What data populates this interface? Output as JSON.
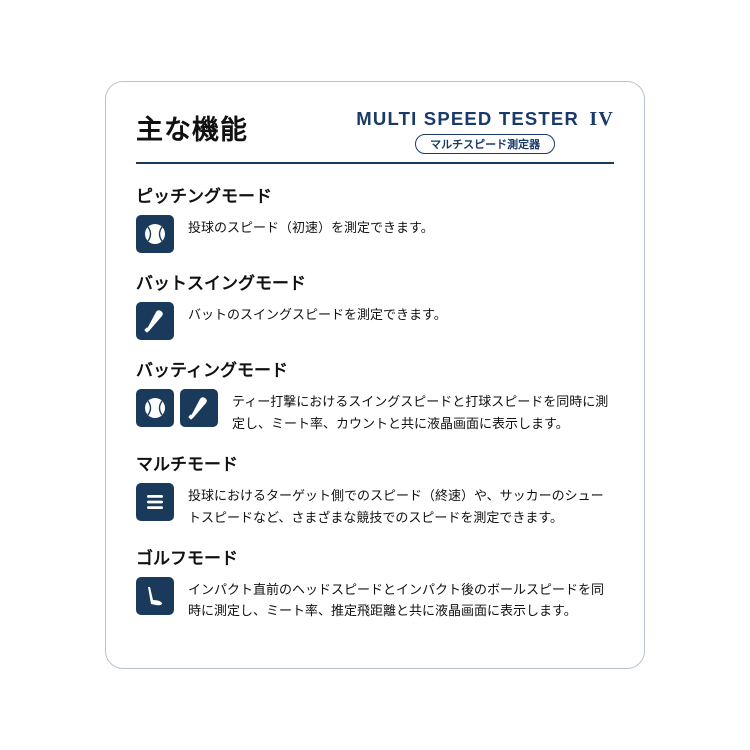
{
  "colors": {
    "brand": "#1a3a5c",
    "brandText": "#1a3a6a",
    "text": "#111111",
    "cardBorder": "#b8c4d0",
    "bg": "#ffffff"
  },
  "header": {
    "mainTitle": "主な機能",
    "productName": "MULTI SPEED TESTER",
    "productRoman": "IV",
    "productSub": "マルチスピード測定器"
  },
  "modes": [
    {
      "title": "ピッチングモード",
      "icons": [
        "ball"
      ],
      "desc": "投球のスピード（初速）を測定できます。"
    },
    {
      "title": "バットスイングモード",
      "icons": [
        "bat"
      ],
      "desc": "バットのスイングスピードを測定できます。"
    },
    {
      "title": "バッティングモード",
      "icons": [
        "ball",
        "bat"
      ],
      "desc": "ティー打撃におけるスイングスピードと打球スピードを同時に測定し、ミート率、カウントと共に液晶画面に表示します。"
    },
    {
      "title": "マルチモード",
      "icons": [
        "multi"
      ],
      "desc": "投球におけるターゲット側でのスピード（終速）や、サッカーのシュートスピードなど、さまざまな競技でのスピードを測定できます。"
    },
    {
      "title": "ゴルフモード",
      "icons": [
        "golf"
      ],
      "desc": "インパクト直前のヘッドスピードとインパクト後のボールスピードを同時に測定し、ミート率、推定飛距離と共に液晶画面に表示します。"
    }
  ]
}
